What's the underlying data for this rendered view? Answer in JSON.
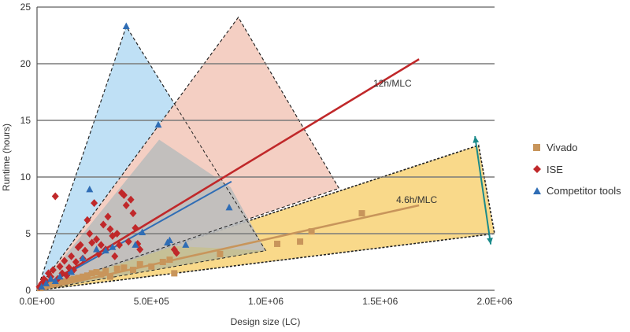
{
  "chart_data": {
    "type": "scatter",
    "xlabel": "Design size (LC)",
    "ylabel": "Runtime (hours)",
    "xlim": [
      0,
      2000000
    ],
    "ylim": [
      0,
      25
    ],
    "x_ticks": [
      "0.0E+00",
      "5.0E+05",
      "1.0E+06",
      "1.5E+06",
      "2.0E+06"
    ],
    "y_ticks": [
      "0",
      "5",
      "10",
      "15",
      "20",
      "25"
    ],
    "grid": "horizontal",
    "legend_position": "right",
    "colors": {
      "vivado": "#c8955b",
      "ise": "#c0282a",
      "competitor": "#2f6db5",
      "blue_region": "#bfe0f5",
      "red_region": "#f4cfc3",
      "gray_overlap": "#bdbdbd",
      "yellow_region": "#f9d98a",
      "arrow": "#1a8a8a"
    },
    "series": [
      {
        "name": "Vivado",
        "marker": "square",
        "color": "#c8955b",
        "points": [
          [
            15000,
            0.2
          ],
          [
            30000,
            0.3
          ],
          [
            45000,
            0.4
          ],
          [
            60000,
            0.5
          ],
          [
            80000,
            0.6
          ],
          [
            100000,
            0.7
          ],
          [
            120000,
            0.8
          ],
          [
            140000,
            0.9
          ],
          [
            160000,
            1.0
          ],
          [
            180000,
            1.1
          ],
          [
            200000,
            1.2
          ],
          [
            220000,
            1.3
          ],
          [
            240000,
            1.5
          ],
          [
            260000,
            1.6
          ],
          [
            280000,
            1.4
          ],
          [
            300000,
            1.7
          ],
          [
            320000,
            1.2
          ],
          [
            350000,
            1.9
          ],
          [
            380000,
            2.0
          ],
          [
            420000,
            1.8
          ],
          [
            450000,
            2.3
          ],
          [
            500000,
            2.1
          ],
          [
            550000,
            2.5
          ],
          [
            580000,
            2.7
          ],
          [
            600000,
            1.5
          ],
          [
            800000,
            3.2
          ],
          [
            1050000,
            4.1
          ],
          [
            1150000,
            4.3
          ],
          [
            1200000,
            5.2
          ],
          [
            1420000,
            6.8
          ]
        ]
      },
      {
        "name": "ISE",
        "marker": "diamond",
        "color": "#c0282a",
        "points": [
          [
            10000,
            0.3
          ],
          [
            20000,
            0.6
          ],
          [
            30000,
            1.0
          ],
          [
            40000,
            0.8
          ],
          [
            50000,
            1.5
          ],
          [
            60000,
            1.2
          ],
          [
            70000,
            1.8
          ],
          [
            80000,
            8.3
          ],
          [
            90000,
            1.0
          ],
          [
            100000,
            2.1
          ],
          [
            110000,
            1.5
          ],
          [
            120000,
            2.6
          ],
          [
            130000,
            1.3
          ],
          [
            140000,
            2.0
          ],
          [
            150000,
            3.0
          ],
          [
            160000,
            1.8
          ],
          [
            170000,
            2.5
          ],
          [
            180000,
            3.8
          ],
          [
            190000,
            4.0
          ],
          [
            200000,
            2.8
          ],
          [
            210000,
            3.5
          ],
          [
            220000,
            6.2
          ],
          [
            230000,
            5.0
          ],
          [
            240000,
            4.2
          ],
          [
            250000,
            7.7
          ],
          [
            260000,
            4.5
          ],
          [
            270000,
            3.2
          ],
          [
            280000,
            4.0
          ],
          [
            290000,
            5.8
          ],
          [
            300000,
            3.6
          ],
          [
            310000,
            6.5
          ],
          [
            320000,
            5.4
          ],
          [
            330000,
            4.8
          ],
          [
            340000,
            3.0
          ],
          [
            350000,
            5.0
          ],
          [
            360000,
            4.0
          ],
          [
            370000,
            8.6
          ],
          [
            380000,
            8.4
          ],
          [
            390000,
            7.5
          ],
          [
            400000,
            4.3
          ],
          [
            410000,
            8.0
          ],
          [
            420000,
            6.8
          ],
          [
            430000,
            5.5
          ],
          [
            440000,
            4.1
          ],
          [
            450000,
            3.6
          ],
          [
            600000,
            3.6
          ],
          [
            610000,
            3.3
          ]
        ]
      },
      {
        "name": "Competitor tools",
        "marker": "triangle",
        "color": "#2f6db5",
        "points": [
          [
            20000,
            0.3
          ],
          [
            40000,
            0.6
          ],
          [
            60000,
            1.0
          ],
          [
            80000,
            0.8
          ],
          [
            100000,
            1.2
          ],
          [
            150000,
            1.6
          ],
          [
            200000,
            2.8
          ],
          [
            230000,
            8.9
          ],
          [
            260000,
            3.6
          ],
          [
            300000,
            3.5
          ],
          [
            330000,
            3.8
          ],
          [
            390000,
            23.3
          ],
          [
            430000,
            4.0
          ],
          [
            460000,
            5.1
          ],
          [
            530000,
            14.6
          ],
          [
            570000,
            4.2
          ],
          [
            580000,
            4.4
          ],
          [
            650000,
            4.0
          ],
          [
            840000,
            7.3
          ]
        ]
      }
    ],
    "trend_lines": [
      {
        "series": "ISE",
        "color": "#c0282a",
        "from": [
          0,
          0
        ],
        "to": [
          1670000,
          20.4
        ]
      },
      {
        "series": "Competitor tools",
        "color": "#2f6db5",
        "from": [
          0,
          0
        ],
        "to": [
          850000,
          9.6
        ]
      },
      {
        "series": "Vivado",
        "color": "#c8955b",
        "from": [
          0,
          0
        ],
        "to": [
          1670000,
          7.5
        ]
      }
    ],
    "regions": [
      {
        "color": "#bfe0f5",
        "points": [
          [
            0,
            0
          ],
          [
            390000,
            23.3
          ],
          [
            1000000,
            3.5
          ]
        ]
      },
      {
        "color": "#f4cfc3",
        "points": [
          [
            0,
            0
          ],
          [
            880000,
            24.1
          ],
          [
            1320000,
            9.0
          ]
        ]
      },
      {
        "color": "#f9d98a",
        "points": [
          [
            0,
            0
          ],
          [
            1930000,
            12.8
          ],
          [
            2000000,
            5.0
          ]
        ]
      }
    ],
    "annotations": [
      {
        "text": "12h/MLC",
        "at": [
          1470000,
          18.0
        ]
      },
      {
        "text": "4.6h/MLC",
        "at": [
          1570000,
          7.7
        ]
      }
    ],
    "arrow": {
      "from": [
        1880000,
        13.6
      ],
      "to": [
        1880000,
        4.4
      ]
    }
  }
}
